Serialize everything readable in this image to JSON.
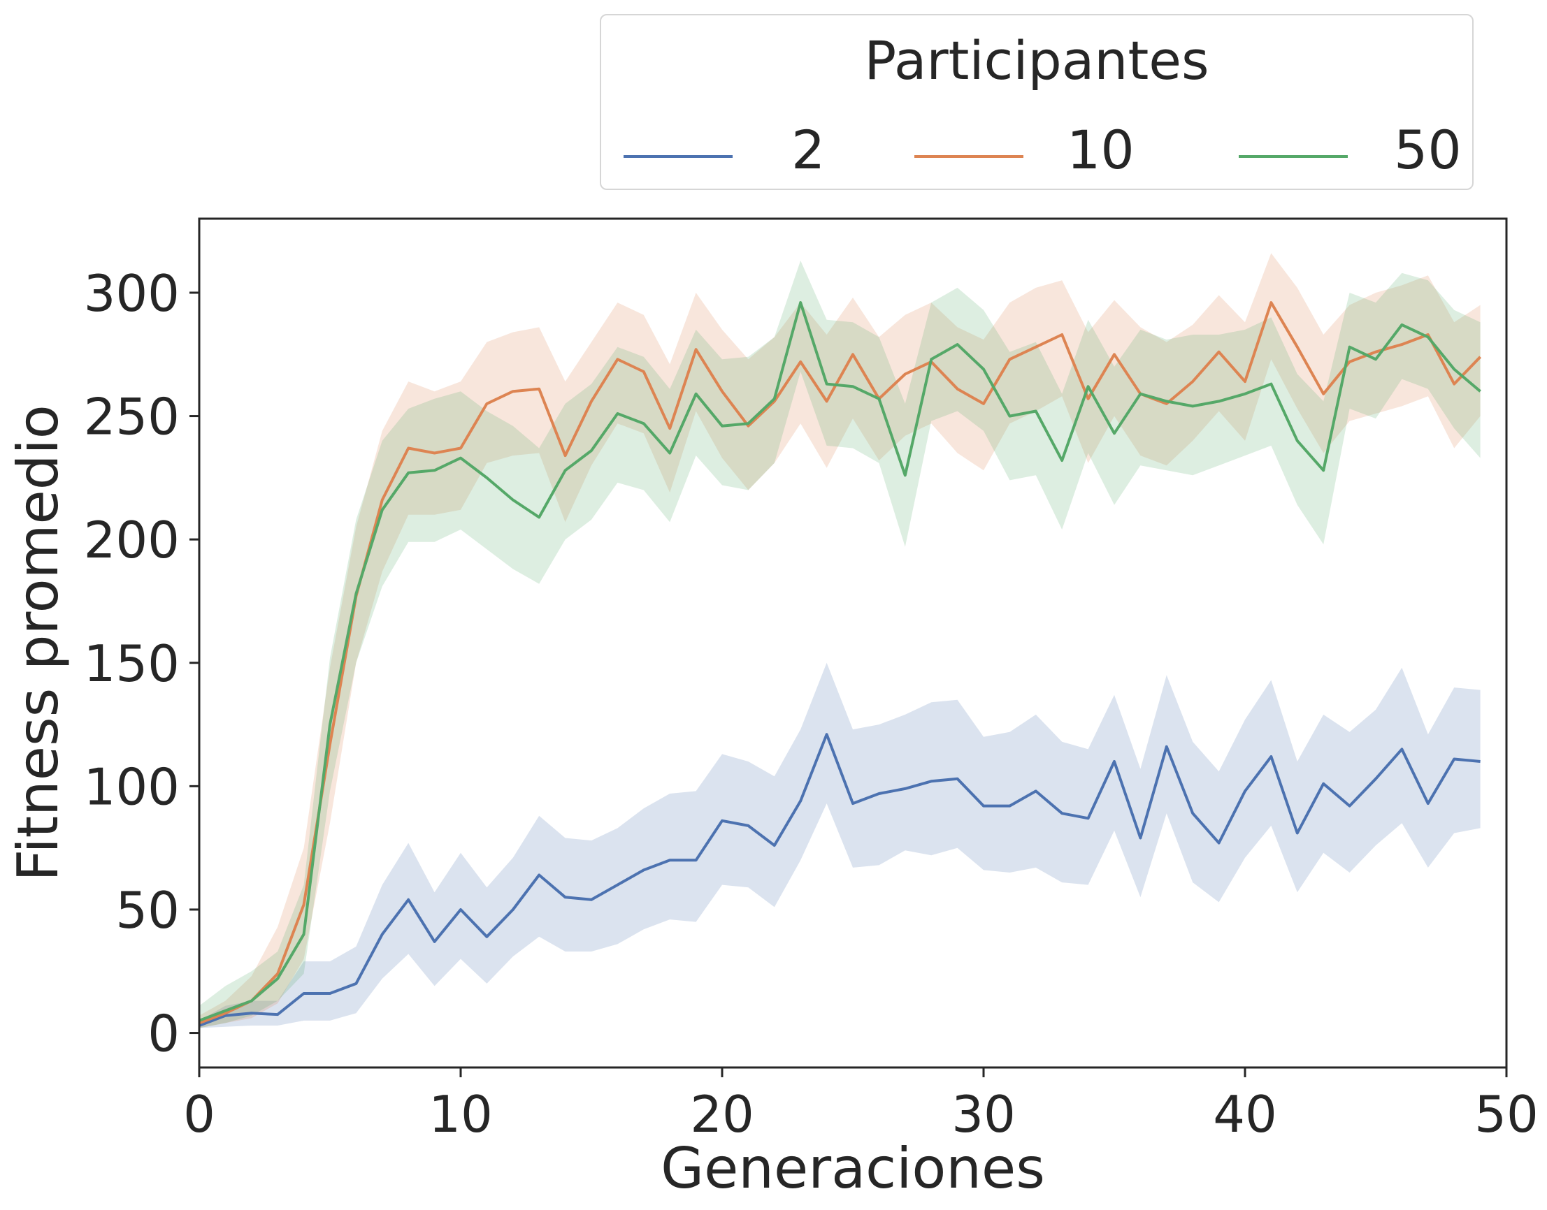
{
  "chart_data": {
    "type": "line",
    "xlabel": "Generaciones",
    "ylabel": "Fitness promedio",
    "xlim": [
      0,
      50
    ],
    "ylim": [
      -14,
      330
    ],
    "xticks": [
      0,
      10,
      20,
      30,
      40,
      50
    ],
    "yticks": [
      0,
      50,
      100,
      150,
      200,
      250,
      300
    ],
    "grid": false,
    "legend": {
      "title": "Participantes",
      "placement": "top-right, above plot"
    },
    "x": [
      0,
      1,
      2,
      3,
      4,
      5,
      6,
      7,
      8,
      9,
      10,
      11,
      12,
      13,
      14,
      15,
      16,
      17,
      18,
      19,
      20,
      21,
      22,
      23,
      24,
      25,
      26,
      27,
      28,
      29,
      30,
      31,
      32,
      33,
      34,
      35,
      36,
      37,
      38,
      39,
      40,
      41,
      42,
      43,
      44,
      45,
      46,
      47,
      48,
      49
    ],
    "series": [
      {
        "name": "2",
        "color": "#4c72b0",
        "values": [
          3,
          7,
          8,
          7.5,
          16,
          16,
          20,
          40,
          54,
          37,
          50,
          39,
          50,
          64,
          55,
          54,
          60,
          66,
          70,
          70,
          86,
          84,
          76,
          94,
          121,
          93,
          97,
          99,
          102,
          103,
          92,
          92,
          98,
          89,
          87,
          110,
          79,
          116,
          89,
          77,
          98,
          112,
          81,
          101,
          92,
          103,
          115,
          93,
          111,
          110
        ],
        "lower": [
          2,
          2.5,
          3,
          3,
          5,
          5,
          8,
          22,
          32,
          19,
          30,
          20,
          31,
          39,
          33,
          33,
          36,
          42,
          46,
          45,
          60,
          59,
          51,
          70,
          93,
          67,
          68,
          74,
          72,
          75,
          66,
          65,
          67,
          61,
          60,
          82,
          55,
          89,
          61,
          53,
          71,
          84,
          57,
          73,
          65,
          76,
          85,
          67,
          81,
          83
        ],
        "upper": [
          5,
          11,
          13,
          13,
          29,
          29,
          35,
          60,
          77,
          57,
          73,
          59,
          71,
          88,
          79,
          78,
          83,
          91,
          97,
          98,
          113,
          110,
          104,
          123,
          150,
          123,
          125,
          129,
          134,
          135,
          120,
          122,
          129,
          118,
          115,
          137,
          107,
          145,
          118,
          106,
          127,
          143,
          110,
          129,
          122,
          131,
          148,
          121,
          140,
          139
        ]
      },
      {
        "name": "10",
        "color": "#dd8452",
        "values": [
          4,
          8,
          13,
          24,
          52,
          117,
          177,
          216,
          237,
          235,
          237,
          255,
          260,
          261,
          234,
          256,
          273,
          268,
          245,
          277,
          260,
          246,
          256,
          272,
          256,
          275,
          257,
          267,
          272,
          261,
          255,
          273,
          278,
          283,
          257,
          275,
          259,
          255,
          264,
          276,
          264,
          296,
          278,
          259,
          272,
          276,
          279,
          283,
          263,
          274
        ],
        "lower": [
          2,
          4,
          6,
          12,
          30,
          85,
          150,
          187,
          210,
          210,
          212,
          231,
          234,
          235,
          207,
          230,
          247,
          243,
          219,
          252,
          233,
          220,
          231,
          247,
          229,
          249,
          232,
          242,
          247,
          235,
          228,
          247,
          252,
          258,
          231,
          250,
          234,
          230,
          240,
          252,
          240,
          273,
          253,
          235,
          248,
          251,
          254,
          258,
          237,
          250
        ],
        "upper": [
          7,
          13,
          23,
          43,
          75,
          148,
          205,
          244,
          264,
          260,
          264,
          280,
          284,
          286,
          264,
          280,
          296,
          291,
          271,
          300,
          285,
          273,
          282,
          296,
          283,
          298,
          282,
          291,
          296,
          286,
          281,
          296,
          302,
          305,
          284,
          297,
          286,
          280,
          287,
          299,
          288,
          316,
          302,
          283,
          295,
          300,
          303,
          307,
          288,
          295
        ]
      },
      {
        "name": "50",
        "color": "#55a868",
        "values": [
          5,
          9,
          13,
          22,
          40,
          125,
          178,
          212,
          227,
          228,
          233,
          225,
          216,
          209,
          228,
          236,
          251,
          247,
          235,
          259,
          246,
          247,
          257,
          296,
          263,
          262,
          257,
          226,
          273,
          279,
          269,
          250,
          252,
          232,
          262,
          243,
          259,
          256,
          254,
          256,
          259,
          263,
          240,
          228,
          278,
          273,
          287,
          282,
          269,
          260
        ],
        "lower": [
          2,
          4,
          7,
          13,
          24,
          98,
          150,
          181,
          199,
          199,
          204,
          196,
          188,
          182,
          200,
          208,
          223,
          220,
          207,
          234,
          222,
          220,
          231,
          268,
          238,
          237,
          231,
          197,
          248,
          252,
          244,
          224,
          226,
          204,
          235,
          214,
          230,
          228,
          226,
          230,
          234,
          238,
          214,
          198,
          253,
          249,
          265,
          261,
          245,
          233
        ],
        "upper": [
          11,
          19,
          25,
          33,
          60,
          152,
          208,
          240,
          253,
          257,
          260,
          252,
          246,
          237,
          255,
          263,
          278,
          274,
          261,
          285,
          273,
          274,
          282,
          313,
          289,
          288,
          282,
          255,
          296,
          302,
          293,
          276,
          280,
          259,
          289,
          270,
          285,
          281,
          283,
          283,
          285,
          290,
          267,
          256,
          300,
          296,
          308,
          305,
          293,
          288
        ]
      }
    ]
  }
}
